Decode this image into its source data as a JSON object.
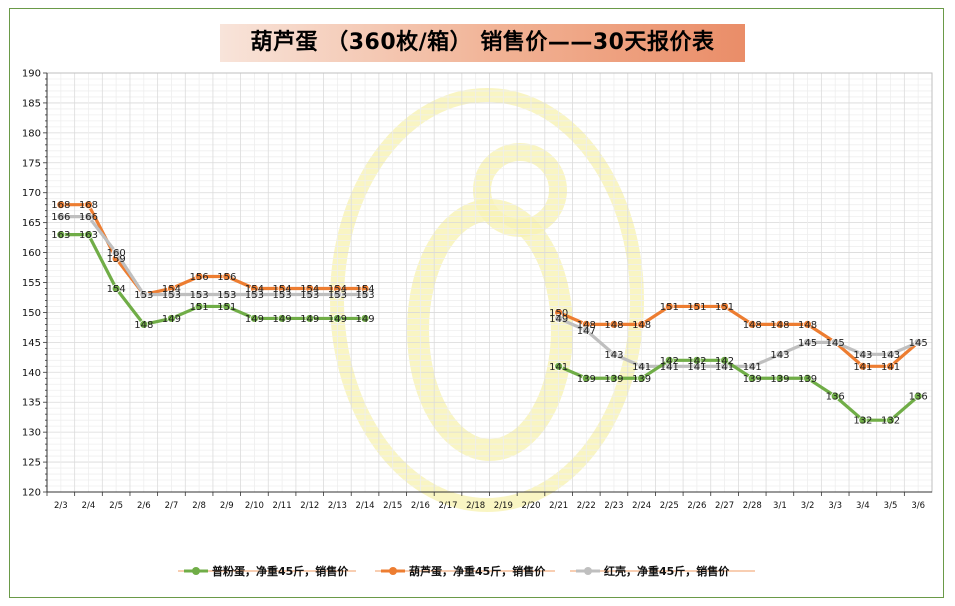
{
  "chart_data": {
    "type": "line",
    "title": "葫芦蛋 （360枚/箱） 销售价——30天报价表",
    "ylim": [
      120,
      190
    ],
    "yticks": [
      120,
      125,
      130,
      135,
      140,
      145,
      150,
      155,
      160,
      165,
      170,
      175,
      180,
      185,
      190
    ],
    "grid": true,
    "legend_position": "bottom",
    "x": [
      "2/3",
      "2/4",
      "2/5",
      "2/6",
      "2/7",
      "2/8",
      "2/9",
      "2/10",
      "2/11",
      "2/12",
      "2/13",
      "2/14",
      "2/15",
      "2/16",
      "2/17",
      "2/18",
      "2/19",
      "2/20",
      "2/21",
      "2/22",
      "2/23",
      "2/24",
      "2/25",
      "2/26",
      "2/27",
      "2/28",
      "3/1",
      "3/2",
      "3/3",
      "3/4",
      "3/5",
      "3/6"
    ],
    "series": [
      {
        "name": "普粉蛋，净重45斤，销售价",
        "color": "#70ad47",
        "values": [
          163,
          163,
          154,
          148,
          149,
          151,
          151,
          149,
          149,
          149,
          149,
          149,
          null,
          null,
          null,
          null,
          null,
          null,
          141,
          139,
          139,
          139,
          142,
          142,
          142,
          139,
          139,
          139,
          136,
          132,
          132,
          136
        ]
      },
      {
        "name": "葫芦蛋，净重45斤，销售价",
        "color": "#ed7d31",
        "values": [
          168,
          168,
          159,
          153,
          154,
          156,
          156,
          154,
          154,
          154,
          154,
          154,
          null,
          null,
          null,
          null,
          null,
          null,
          150,
          148,
          148,
          148,
          151,
          151,
          151,
          148,
          148,
          148,
          145,
          141,
          141,
          145
        ]
      },
      {
        "name": "红壳，净重45斤，销售价",
        "color": "#bfbfbf",
        "values": [
          166,
          166,
          160,
          153,
          153,
          153,
          153,
          153,
          153,
          153,
          153,
          153,
          null,
          null,
          null,
          null,
          null,
          null,
          149,
          147,
          143,
          141,
          141,
          141,
          141,
          141,
          143,
          145,
          145,
          143,
          143,
          145
        ]
      }
    ],
    "data_labels": {
      "普粉蛋，净重45斤，销售价": [
        163,
        163,
        154,
        148,
        149,
        151,
        151,
        149,
        149,
        149,
        149,
        149,
        null,
        null,
        null,
        null,
        null,
        null,
        141,
        139,
        139,
        139,
        142,
        142,
        142,
        139,
        139,
        139,
        136,
        132,
        132,
        136
      ],
      "葫芦蛋，净重45斤，销售价": [
        168,
        168,
        159,
        null,
        154,
        156,
        156,
        154,
        154,
        154,
        154,
        154,
        null,
        null,
        null,
        null,
        null,
        null,
        150,
        148,
        148,
        148,
        151,
        151,
        151,
        148,
        148,
        148,
        null,
        141,
        141,
        null
      ],
      "红壳，净重45斤，销售价": [
        166,
        166,
        160,
        153,
        153,
        153,
        153,
        153,
        153,
        153,
        153,
        153,
        null,
        null,
        null,
        null,
        null,
        null,
        149,
        147,
        143,
        141,
        141,
        141,
        141,
        141,
        143,
        145,
        145,
        143,
        143,
        145
      ]
    }
  }
}
